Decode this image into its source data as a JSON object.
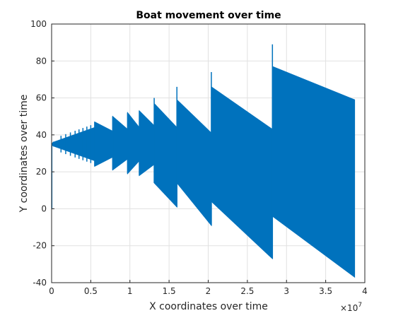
{
  "chart_data": {
    "type": "area",
    "title": "Boat movement over time",
    "xlabel": "X coordinates over time",
    "ylabel": "Y coordinates over time",
    "xlim": [
      0,
      4
    ],
    "ylim": [
      -40,
      100
    ],
    "x_exponent_label": "×10",
    "x_exponent_power": "7",
    "grid": true,
    "color": "#0072bd",
    "x_ticks": [
      "0",
      "0.5",
      "1",
      "1.5",
      "2",
      "2.5",
      "3",
      "3.5",
      "4"
    ],
    "y_ticks": [
      "-40",
      "-20",
      "0",
      "20",
      "40",
      "60",
      "80",
      "100"
    ],
    "series": [
      {
        "description_of_shape": "oscillating band, segments between jumps",
        "segments": [
          {
            "x0": 0.0,
            "x1": 0.02,
            "upper": [
              35,
              36
            ],
            "lower": [
              35,
              34
            ]
          },
          {
            "x0": 0.02,
            "x1": 0.55,
            "upper": [
              36,
              44
            ],
            "lower": [
              34,
              26
            ]
          },
          {
            "x0": 0.55,
            "x1": 0.78,
            "upper": [
              47,
              42
            ],
            "lower": [
              23,
              28
            ]
          },
          {
            "x0": 0.78,
            "x1": 0.97,
            "upper": [
              50,
              43
            ],
            "lower": [
              21,
              27
            ]
          },
          {
            "x0": 0.97,
            "x1": 1.12,
            "upper": [
              52,
              44
            ],
            "lower": [
              19,
              26
            ]
          },
          {
            "x0": 1.12,
            "x1": 1.31,
            "upper": [
              53,
              45
            ],
            "lower": [
              18,
              24
            ]
          },
          {
            "x0": 1.31,
            "x1": 1.6,
            "upper": [
              57,
              44
            ],
            "lower": [
              14,
              1
            ]
          },
          {
            "x0": 1.6,
            "x1": 2.04,
            "upper": [
              59,
              41
            ],
            "lower": [
              14,
              -9
            ]
          },
          {
            "x0": 2.04,
            "x1": 2.82,
            "upper": [
              66,
              43
            ],
            "lower": [
              4,
              -27
            ]
          },
          {
            "x0": 2.82,
            "x1": 3.87,
            "upper": [
              77,
              59
            ],
            "lower": [
              -4,
              -37
            ]
          }
        ],
        "spikes": [
          {
            "x": 1.31,
            "y": 60
          },
          {
            "x": 1.6,
            "y": 66
          },
          {
            "x": 2.04,
            "y": 74
          },
          {
            "x": 2.82,
            "y": 89
          }
        ]
      }
    ]
  }
}
